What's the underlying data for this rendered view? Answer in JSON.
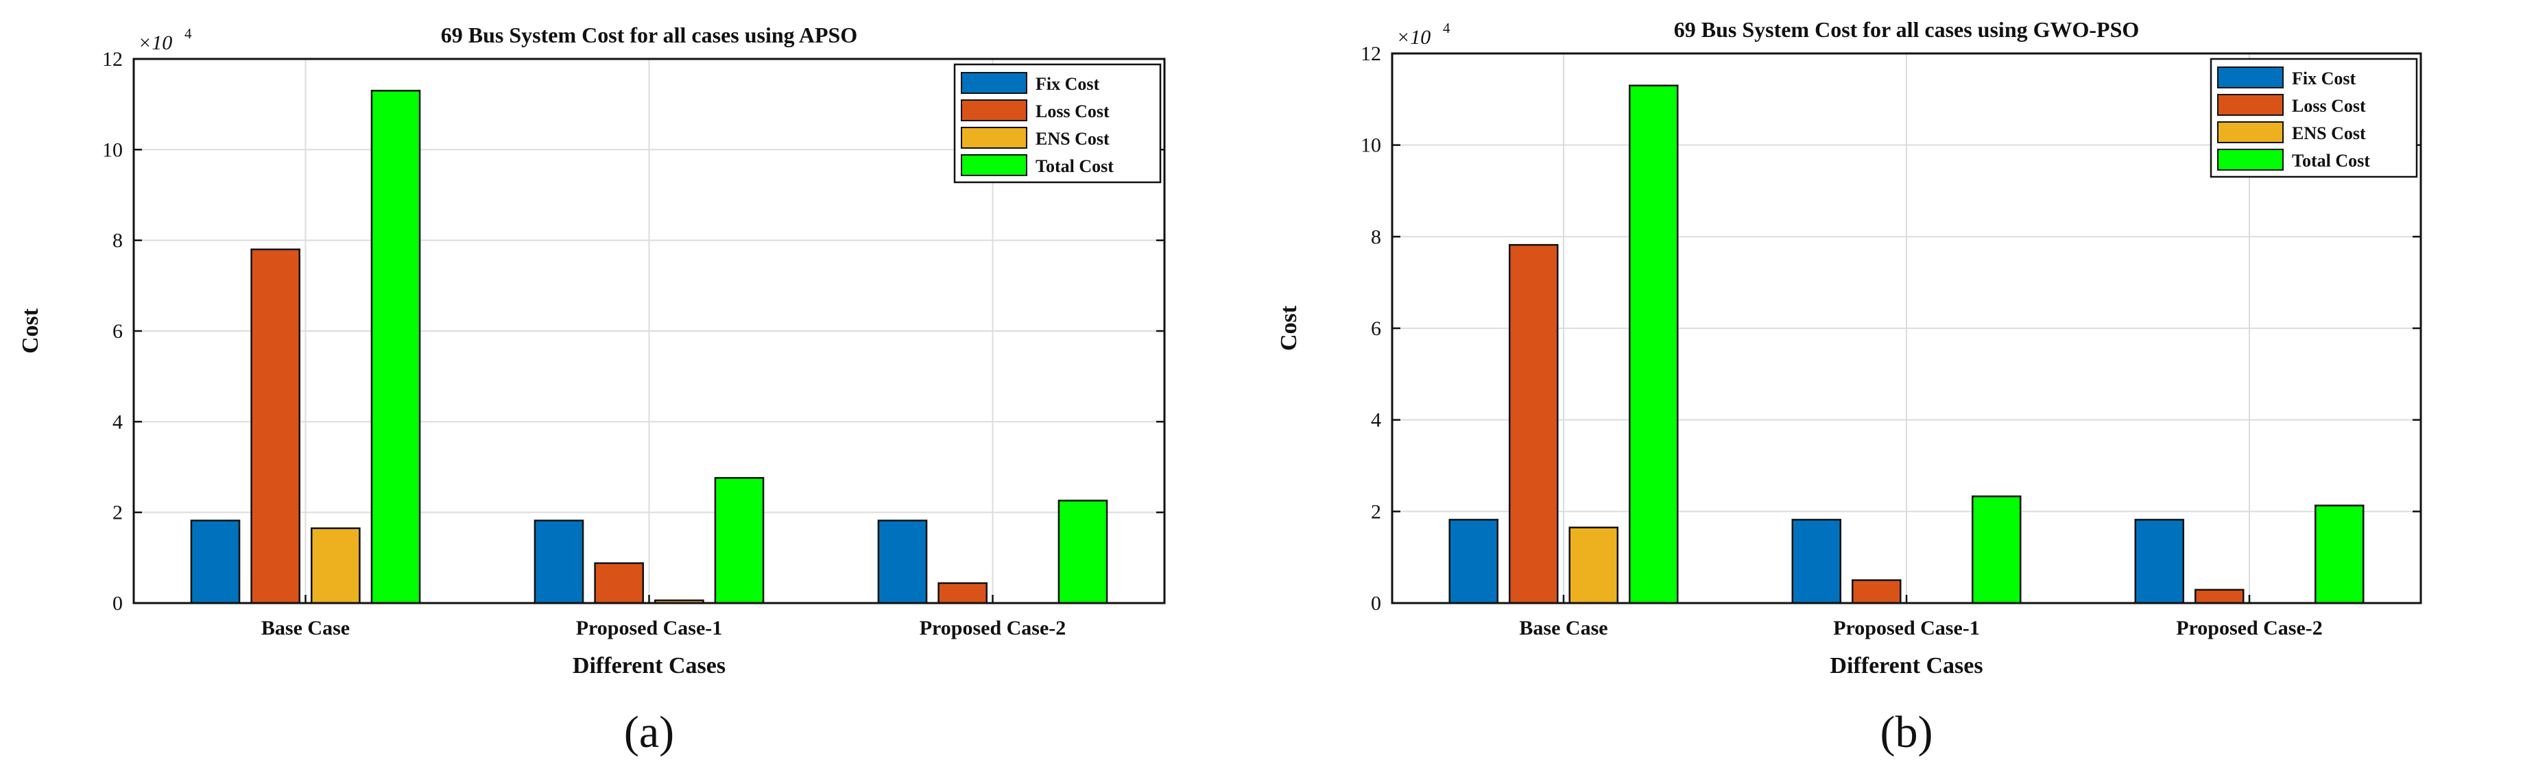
{
  "chart_data": [
    {
      "type": "bar",
      "title": "69 Bus System Cost for all cases using APSO",
      "xlabel": "Different Cases",
      "ylabel": "Cost",
      "multiplier": "×10",
      "multiplier_exp": "4",
      "ylim": [
        0,
        120000
      ],
      "ytick_values": [
        0,
        20000,
        40000,
        60000,
        80000,
        100000,
        120000
      ],
      "ytick_labels": [
        "0",
        "2",
        "4",
        "6",
        "8",
        "10",
        "12"
      ],
      "categories": [
        "Base Case",
        "Proposed Case-1",
        "Proposed Case-2"
      ],
      "series": [
        {
          "name": "Fix Cost",
          "color": "#0072bd",
          "values": [
            18200,
            18200,
            18200
          ]
        },
        {
          "name": "Loss Cost",
          "color": "#d95319",
          "values": [
            78000,
            8800,
            4400
          ]
        },
        {
          "name": "ENS Cost",
          "color": "#edb120",
          "values": [
            16500,
            600,
            0
          ]
        },
        {
          "name": "Total Cost",
          "color": "#00ff00",
          "values": [
            113000,
            27600,
            22600
          ]
        }
      ],
      "grid": true,
      "legend_position": "top-right",
      "panel_label": "(a)"
    },
    {
      "type": "bar",
      "title": "69 Bus System Cost for all cases using GWO-PSO",
      "xlabel": "Different Cases",
      "ylabel": "Cost",
      "multiplier": "×10",
      "multiplier_exp": "4",
      "ylim": [
        0,
        120000
      ],
      "ytick_values": [
        0,
        20000,
        40000,
        60000,
        80000,
        100000,
        120000
      ],
      "ytick_labels": [
        "0",
        "2",
        "4",
        "6",
        "8",
        "10",
        "12"
      ],
      "categories": [
        "Base Case",
        "Proposed Case-1",
        "Proposed Case-2"
      ],
      "series": [
        {
          "name": "Fix Cost",
          "color": "#0072bd",
          "values": [
            18200,
            18200,
            18200
          ]
        },
        {
          "name": "Loss Cost",
          "color": "#d95319",
          "values": [
            78200,
            5000,
            2900
          ]
        },
        {
          "name": "ENS Cost",
          "color": "#edb120",
          "values": [
            16500,
            0,
            0
          ]
        },
        {
          "name": "Total Cost",
          "color": "#00ff00",
          "values": [
            113000,
            23300,
            21300
          ]
        }
      ],
      "grid": true,
      "legend_position": "top-right",
      "panel_label": "(b)"
    }
  ]
}
